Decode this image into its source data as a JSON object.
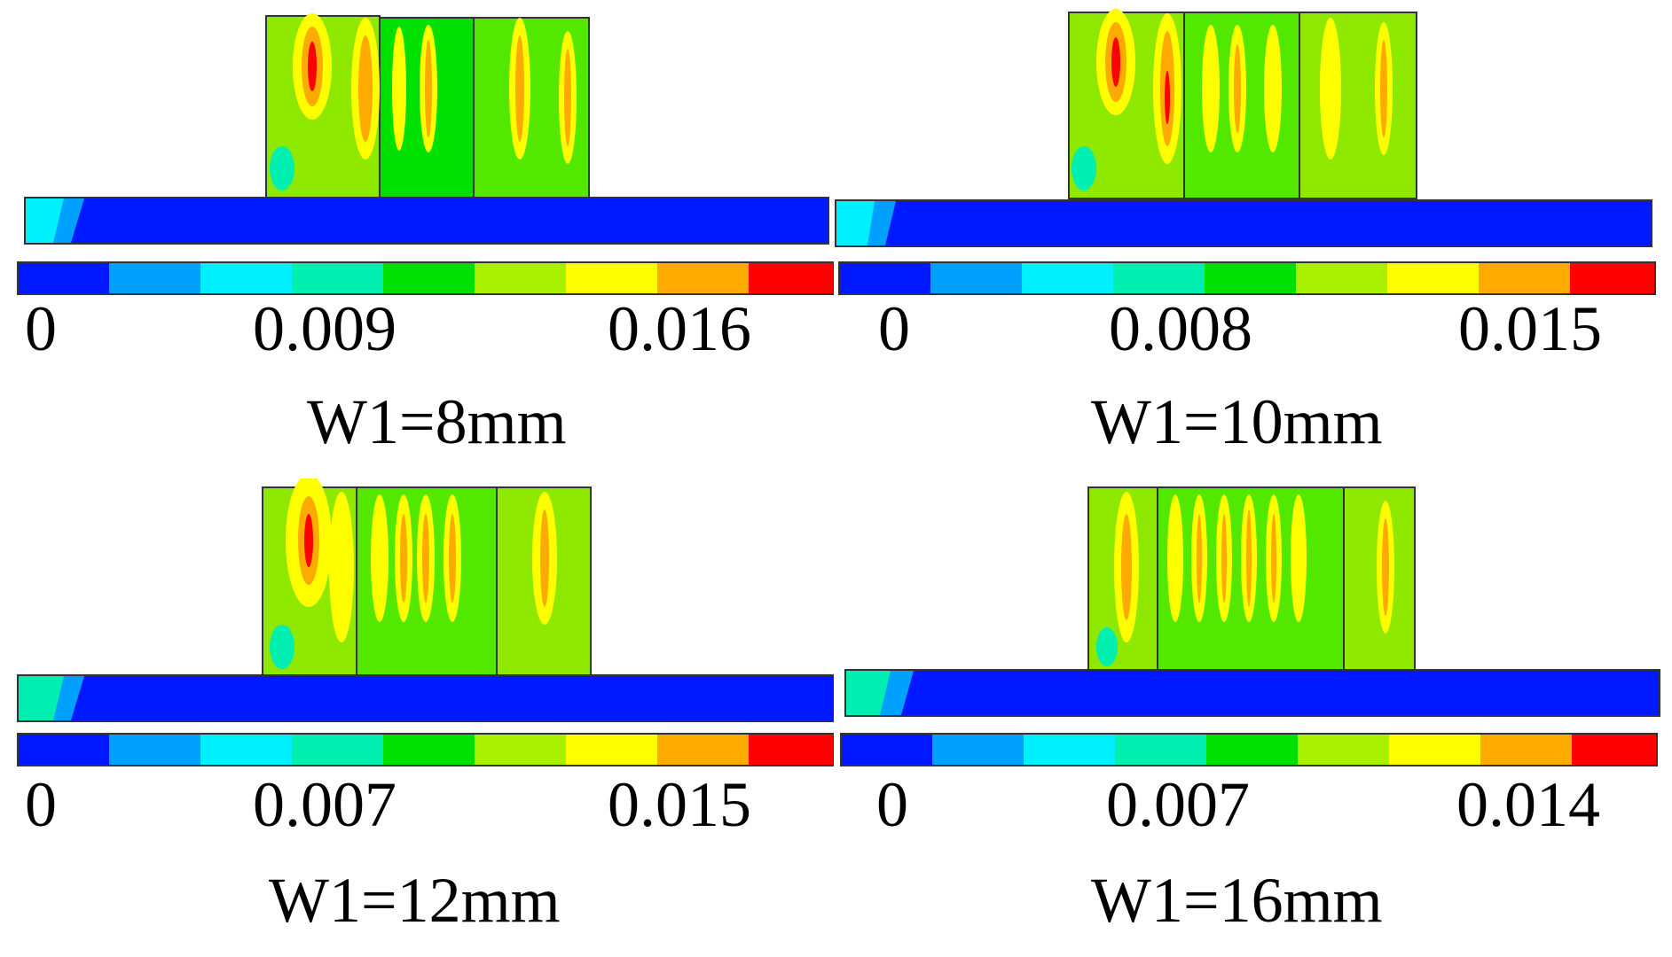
{
  "palette": [
    "#0018ff",
    "#00a0ff",
    "#00f0ff",
    "#00eeb0",
    "#00e000",
    "#a8f000",
    "#ffff00",
    "#ffaa00",
    "#ff0000"
  ],
  "panels": [
    {
      "id": "p1",
      "caption": "W1=8mm",
      "ticks": [
        "0",
        "0.009",
        "0.016"
      ]
    },
    {
      "id": "p2",
      "caption": "W1=10mm",
      "ticks": [
        "0",
        "0.008",
        "0.015"
      ]
    },
    {
      "id": "p3",
      "caption": "W1=12mm",
      "ticks": [
        "0",
        "0.007",
        "0.015"
      ]
    },
    {
      "id": "p4",
      "caption": "W1=16mm",
      "ticks": [
        "0",
        "0.007",
        "0.014"
      ]
    }
  ]
}
